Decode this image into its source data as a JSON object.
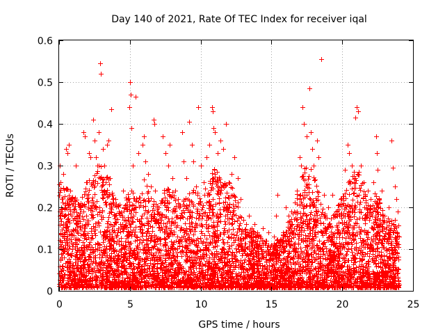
{
  "chart_data": {
    "type": "scatter",
    "title": "Day 140 of 2021, Rate Of TEC Index for receiver iqal",
    "xlabel": "GPS time / hours",
    "ylabel": "ROTI / TECUs",
    "xlim": [
      0,
      25
    ],
    "ylim": [
      0,
      0.6
    ],
    "xticks": [
      0,
      5,
      10,
      15,
      20,
      25
    ],
    "yticks": [
      0,
      0.1,
      0.2,
      0.3,
      0.4,
      0.5,
      0.6
    ],
    "xtick_labels": [
      "0",
      "5",
      "10",
      "15",
      "20",
      "25"
    ],
    "ytick_labels": [
      "0",
      "0.1",
      "0.2",
      "0.3",
      "0.4",
      "0.5",
      "0.6"
    ],
    "grid": true,
    "marker": "plus",
    "color": "#ff0000",
    "series": [
      {
        "name": "ROTI",
        "points": [
          [
            0.05,
            0.3
          ],
          [
            0.1,
            0.26
          ],
          [
            0.2,
            0.22
          ],
          [
            0.3,
            0.28
          ],
          [
            0.4,
            0.2
          ],
          [
            0.5,
            0.34
          ],
          [
            0.6,
            0.33
          ],
          [
            0.7,
            0.35
          ],
          [
            0.8,
            0.24
          ],
          [
            0.9,
            0.18
          ],
          [
            1.2,
            0.3
          ],
          [
            1.5,
            0.21
          ],
          [
            1.7,
            0.38
          ],
          [
            1.8,
            0.37
          ],
          [
            1.9,
            0.26
          ],
          [
            2.1,
            0.33
          ],
          [
            2.2,
            0.32
          ],
          [
            2.4,
            0.41
          ],
          [
            2.5,
            0.36
          ],
          [
            2.6,
            0.32
          ],
          [
            2.7,
            0.3
          ],
          [
            2.8,
            0.38
          ],
          [
            2.9,
            0.545
          ],
          [
            2.95,
            0.52
          ],
          [
            3.1,
            0.34
          ],
          [
            3.2,
            0.3
          ],
          [
            3.3,
            0.26
          ],
          [
            3.4,
            0.35
          ],
          [
            3.5,
            0.36
          ],
          [
            3.6,
            0.27
          ],
          [
            3.7,
            0.435
          ],
          [
            3.8,
            0.23
          ],
          [
            4.0,
            0.22
          ],
          [
            4.2,
            0.19
          ],
          [
            4.5,
            0.24
          ],
          [
            4.8,
            0.2
          ],
          [
            4.95,
            0.44
          ],
          [
            5.0,
            0.5
          ],
          [
            5.05,
            0.47
          ],
          [
            5.1,
            0.39
          ],
          [
            5.2,
            0.3
          ],
          [
            5.4,
            0.465
          ],
          [
            5.6,
            0.33
          ],
          [
            5.9,
            0.35
          ],
          [
            6.0,
            0.37
          ],
          [
            6.1,
            0.31
          ],
          [
            6.3,
            0.28
          ],
          [
            6.5,
            0.25
          ],
          [
            6.7,
            0.41
          ],
          [
            6.75,
            0.4
          ],
          [
            6.8,
            0.24
          ],
          [
            7.0,
            0.2
          ],
          [
            7.3,
            0.37
          ],
          [
            7.5,
            0.33
          ],
          [
            7.7,
            0.3
          ],
          [
            7.8,
            0.35
          ],
          [
            8.0,
            0.27
          ],
          [
            8.2,
            0.24
          ],
          [
            8.4,
            0.22
          ],
          [
            8.5,
            0.2
          ],
          [
            8.7,
            0.38
          ],
          [
            8.8,
            0.31
          ],
          [
            9.0,
            0.27
          ],
          [
            9.2,
            0.405
          ],
          [
            9.4,
            0.35
          ],
          [
            9.5,
            0.31
          ],
          [
            9.7,
            0.25
          ],
          [
            9.8,
            0.44
          ],
          [
            10.0,
            0.3
          ],
          [
            10.2,
            0.26
          ],
          [
            10.4,
            0.32
          ],
          [
            10.6,
            0.35
          ],
          [
            10.8,
            0.44
          ],
          [
            10.85,
            0.43
          ],
          [
            10.9,
            0.39
          ],
          [
            11.0,
            0.38
          ],
          [
            11.2,
            0.33
          ],
          [
            11.4,
            0.36
          ],
          [
            11.6,
            0.34
          ],
          [
            11.8,
            0.4
          ],
          [
            12.0,
            0.26
          ],
          [
            12.2,
            0.28
          ],
          [
            12.4,
            0.32
          ],
          [
            12.6,
            0.27
          ],
          [
            12.8,
            0.22
          ],
          [
            13.0,
            0.17
          ],
          [
            13.2,
            0.16
          ],
          [
            13.4,
            0.18
          ],
          [
            13.6,
            0.15
          ],
          [
            13.8,
            0.16
          ],
          [
            14.0,
            0.14
          ],
          [
            14.2,
            0.13
          ],
          [
            14.4,
            0.15
          ],
          [
            14.6,
            0.12
          ],
          [
            14.8,
            0.14
          ],
          [
            15.0,
            0.11
          ],
          [
            15.2,
            0.13
          ],
          [
            15.3,
            0.18
          ],
          [
            15.4,
            0.23
          ],
          [
            15.6,
            0.12
          ],
          [
            15.8,
            0.14
          ],
          [
            16.0,
            0.2
          ],
          [
            16.2,
            0.18
          ],
          [
            16.4,
            0.19
          ],
          [
            16.6,
            0.15
          ],
          [
            16.8,
            0.24
          ],
          [
            17.0,
            0.32
          ],
          [
            17.1,
            0.3
          ],
          [
            17.2,
            0.44
          ],
          [
            17.3,
            0.4
          ],
          [
            17.5,
            0.37
          ],
          [
            17.7,
            0.485
          ],
          [
            17.8,
            0.38
          ],
          [
            17.9,
            0.34
          ],
          [
            18.0,
            0.3
          ],
          [
            18.2,
            0.36
          ],
          [
            18.3,
            0.32
          ],
          [
            18.5,
            0.555
          ],
          [
            18.7,
            0.23
          ],
          [
            19.0,
            0.2
          ],
          [
            19.3,
            0.23
          ],
          [
            19.6,
            0.18
          ],
          [
            19.9,
            0.22
          ],
          [
            20.2,
            0.29
          ],
          [
            20.4,
            0.35
          ],
          [
            20.5,
            0.33
          ],
          [
            20.7,
            0.3
          ],
          [
            20.9,
            0.415
          ],
          [
            21.0,
            0.44
          ],
          [
            21.1,
            0.43
          ],
          [
            21.3,
            0.3
          ],
          [
            21.5,
            0.26
          ],
          [
            21.8,
            0.24
          ],
          [
            22.0,
            0.22
          ],
          [
            22.2,
            0.26
          ],
          [
            22.4,
            0.37
          ],
          [
            22.45,
            0.33
          ],
          [
            22.5,
            0.29
          ],
          [
            22.8,
            0.24
          ],
          [
            23.0,
            0.18
          ],
          [
            23.3,
            0.2
          ],
          [
            23.5,
            0.36
          ],
          [
            23.6,
            0.295
          ],
          [
            23.7,
            0.25
          ],
          [
            23.8,
            0.22
          ],
          [
            23.9,
            0.19
          ]
        ],
        "envelope": [
          [
            0,
            0.25
          ],
          [
            0.5,
            0.24
          ],
          [
            1,
            0.22
          ],
          [
            1.5,
            0.2
          ],
          [
            2,
            0.26
          ],
          [
            2.5,
            0.28
          ],
          [
            3,
            0.3
          ],
          [
            3.5,
            0.26
          ],
          [
            4,
            0.2
          ],
          [
            4.5,
            0.2
          ],
          [
            5,
            0.24
          ],
          [
            5.5,
            0.22
          ],
          [
            6,
            0.26
          ],
          [
            6.5,
            0.22
          ],
          [
            7,
            0.2
          ],
          [
            7.5,
            0.24
          ],
          [
            8,
            0.24
          ],
          [
            8.5,
            0.2
          ],
          [
            9,
            0.22
          ],
          [
            9.5,
            0.24
          ],
          [
            10,
            0.22
          ],
          [
            10.5,
            0.25
          ],
          [
            11,
            0.3
          ],
          [
            11.5,
            0.25
          ],
          [
            12,
            0.26
          ],
          [
            12.5,
            0.22
          ],
          [
            13,
            0.15
          ],
          [
            13.5,
            0.14
          ],
          [
            14,
            0.13
          ],
          [
            14.5,
            0.12
          ],
          [
            15,
            0.1
          ],
          [
            15.5,
            0.12
          ],
          [
            16,
            0.15
          ],
          [
            16.5,
            0.18
          ],
          [
            17,
            0.26
          ],
          [
            17.5,
            0.3
          ],
          [
            18,
            0.28
          ],
          [
            18.5,
            0.22
          ],
          [
            19,
            0.16
          ],
          [
            19.5,
            0.18
          ],
          [
            20,
            0.22
          ],
          [
            20.5,
            0.26
          ],
          [
            21,
            0.3
          ],
          [
            21.5,
            0.24
          ],
          [
            22,
            0.2
          ],
          [
            22.5,
            0.24
          ],
          [
            23,
            0.16
          ],
          [
            23.5,
            0.18
          ],
          [
            24,
            0.15
          ]
        ],
        "dense_count": 5500
      }
    ]
  }
}
